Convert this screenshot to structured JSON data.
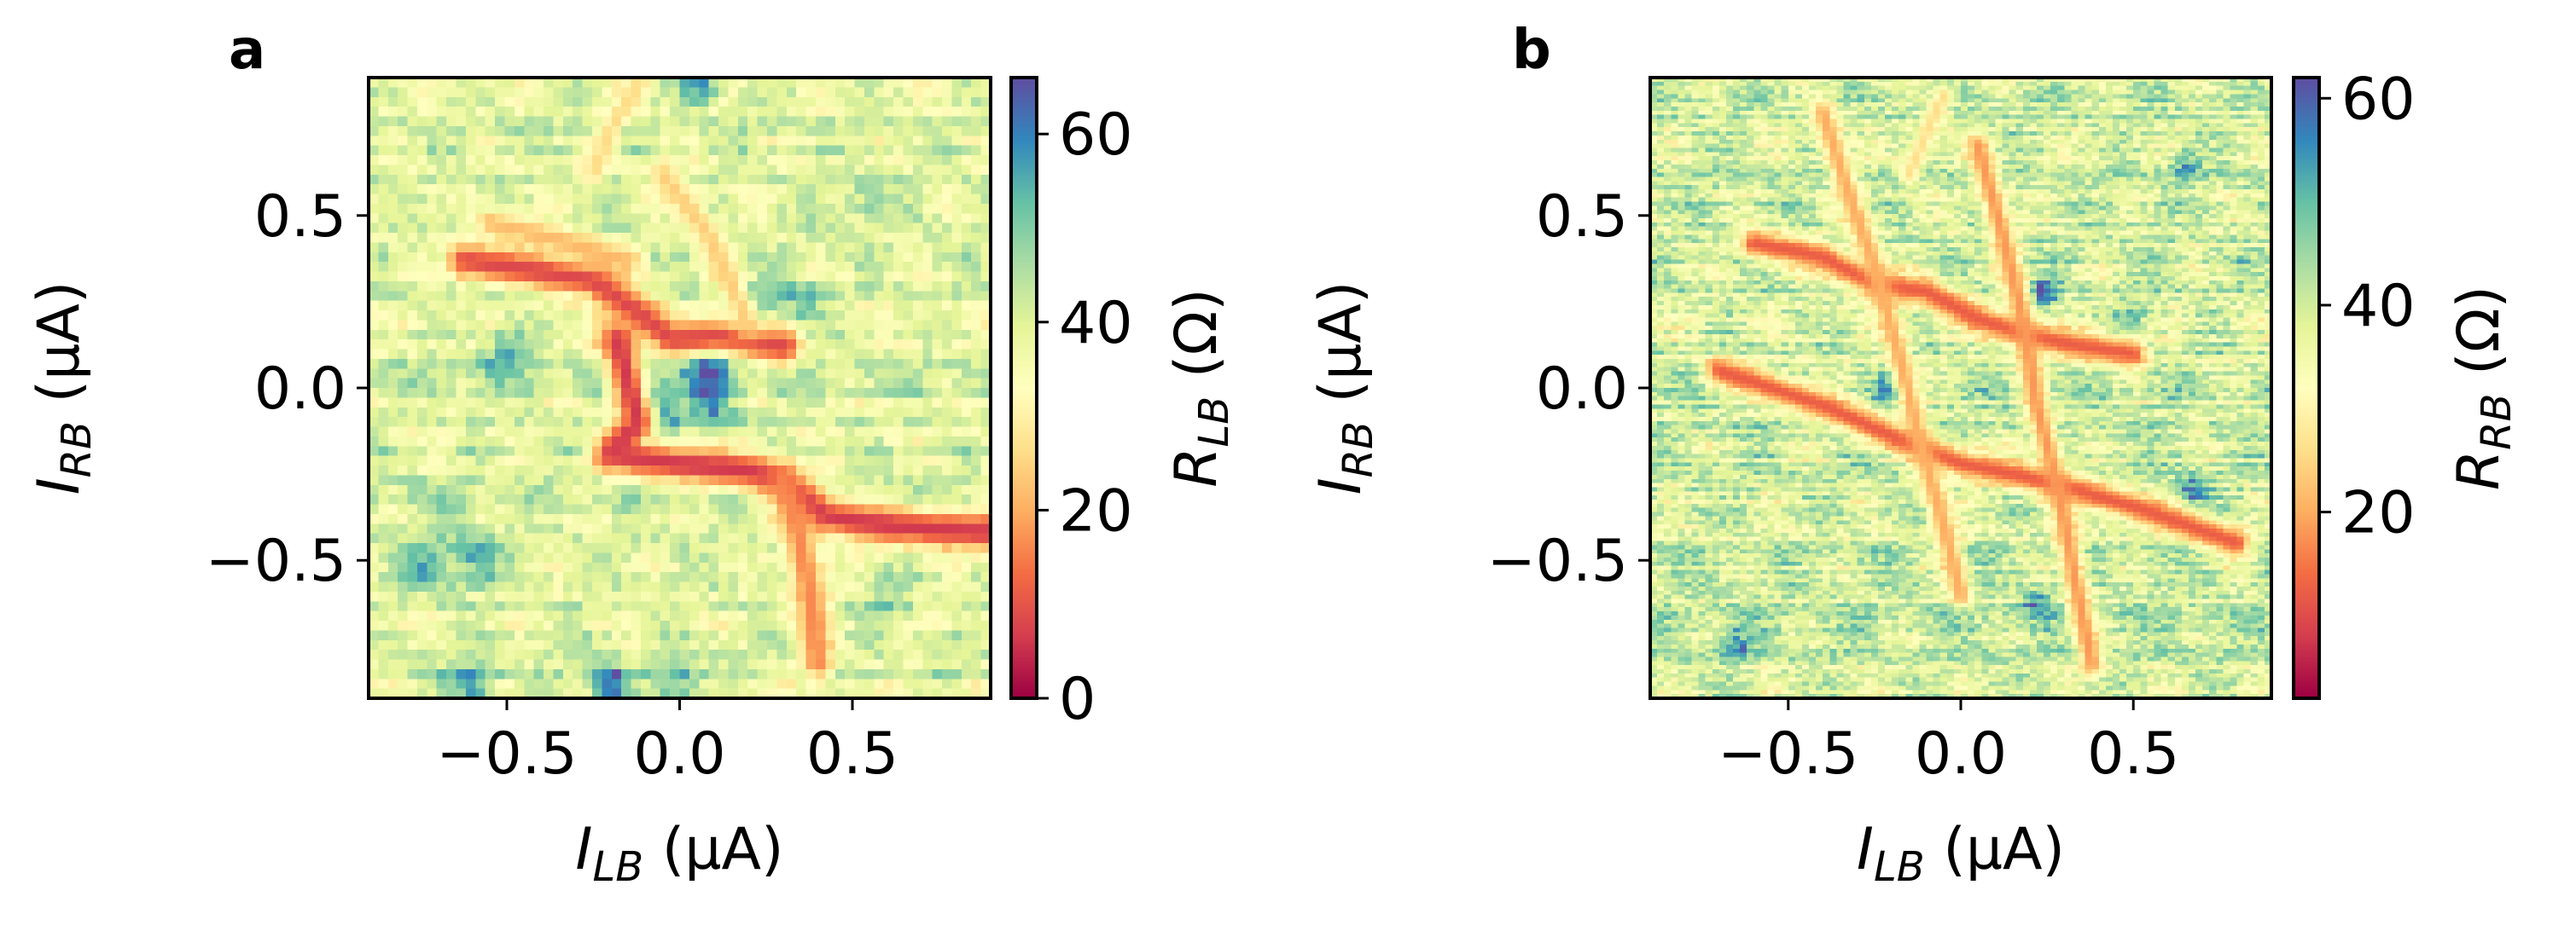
{
  "chart_data": [
    {
      "panel": "a",
      "type": "heatmap",
      "xlabel": {
        "var": "I",
        "sub": "LB",
        "unit": " (µA)"
      },
      "ylabel": {
        "var": "I",
        "sub": "RB",
        "unit": " (µA)"
      },
      "xlim": [
        -0.9,
        0.9
      ],
      "ylim": [
        -0.9,
        0.9
      ],
      "xticks": [
        {
          "value": -0.5,
          "label": "−0.5"
        },
        {
          "value": 0.0,
          "label": "0.0"
        },
        {
          "value": 0.5,
          "label": "0.5"
        }
      ],
      "yticks": [
        {
          "value": 0.5,
          "label": "0.5"
        },
        {
          "value": 0.0,
          "label": "0.0"
        },
        {
          "value": -0.5,
          "label": "−0.5"
        }
      ],
      "colorbar": {
        "label": {
          "var": "R",
          "sub": "LB",
          "unit": " (Ω)"
        },
        "range": [
          0,
          66
        ],
        "ticks": [
          {
            "value": 0,
            "label": "0"
          },
          {
            "value": 20,
            "label": "20"
          },
          {
            "value": 40,
            "label": "40"
          },
          {
            "value": 60,
            "label": "60"
          }
        ]
      },
      "colormap": "Spectral",
      "background_value": 40,
      "grid_resolution": [
        64,
        64
      ],
      "low_resistance_lines": [
        {
          "points": [
            [
              -0.55,
              0.48
            ],
            [
              -0.35,
              0.43
            ],
            [
              -0.15,
              0.37
            ]
          ],
          "value": 22,
          "width": 0.03
        },
        {
          "points": [
            [
              -0.62,
              0.37
            ],
            [
              -0.42,
              0.34
            ],
            [
              -0.25,
              0.31
            ],
            [
              -0.12,
              0.22
            ],
            [
              -0.02,
              0.14
            ],
            [
              0.12,
              0.15
            ],
            [
              0.3,
              0.12
            ]
          ],
          "value": 8,
          "width": 0.038
        },
        {
          "points": [
            [
              -0.18,
              0.14
            ],
            [
              -0.12,
              -0.1
            ],
            [
              -0.2,
              -0.19
            ],
            [
              0.0,
              -0.22
            ],
            [
              0.2,
              -0.24
            ],
            [
              0.3,
              -0.27
            ],
            [
              0.42,
              -0.37
            ],
            [
              0.6,
              -0.4
            ],
            [
              0.9,
              -0.42
            ]
          ],
          "value": 6,
          "width": 0.04
        },
        {
          "points": [
            [
              0.3,
              -0.28
            ],
            [
              0.35,
              -0.45
            ],
            [
              0.38,
              -0.62
            ],
            [
              0.4,
              -0.8
            ]
          ],
          "value": 16,
          "width": 0.035
        },
        {
          "points": [
            [
              -0.05,
              0.62
            ],
            [
              0.08,
              0.45
            ],
            [
              0.15,
              0.3
            ],
            [
              0.2,
              0.18
            ]
          ],
          "value": 24,
          "width": 0.03
        },
        {
          "points": [
            [
              -0.25,
              0.62
            ],
            [
              -0.2,
              0.75
            ],
            [
              -0.12,
              0.88
            ]
          ],
          "value": 26,
          "width": 0.025
        }
      ],
      "high_resistance_spots": [
        {
          "x": 0.08,
          "y": 0.07,
          "value": 64,
          "r": 0.055
        },
        {
          "x": -0.07,
          "y": -0.07,
          "value": 62,
          "r": 0.055
        },
        {
          "x": -0.12,
          "y": 0.02,
          "value": 57,
          "r": 0.05
        },
        {
          "x": 0.22,
          "y": 0.24,
          "value": 55,
          "r": 0.05
        },
        {
          "x": 0.36,
          "y": 0.24,
          "value": 54,
          "r": 0.045
        },
        {
          "x": 0.1,
          "y": -0.07,
          "value": 56,
          "r": 0.045
        },
        {
          "x": -0.5,
          "y": 0.1,
          "value": 54,
          "r": 0.05
        },
        {
          "x": -0.6,
          "y": -0.5,
          "value": 54,
          "r": 0.06
        },
        {
          "x": -0.75,
          "y": -0.52,
          "value": 52,
          "r": 0.06
        },
        {
          "x": -0.2,
          "y": -0.86,
          "value": 66,
          "r": 0.04
        },
        {
          "x": -0.6,
          "y": -0.87,
          "value": 58,
          "r": 0.05
        },
        {
          "x": 0.0,
          "y": -0.87,
          "value": 56,
          "r": 0.05
        },
        {
          "x": 0.06,
          "y": 0.88,
          "value": 60,
          "r": 0.04
        },
        {
          "x": 0.55,
          "y": 0.55,
          "value": 50,
          "r": 0.05
        },
        {
          "x": 0.6,
          "y": -0.62,
          "value": 50,
          "r": 0.05
        }
      ],
      "noise_amplitude": 10,
      "seed": 11
    },
    {
      "panel": "b",
      "type": "heatmap",
      "xlabel": {
        "var": "I",
        "sub": "LB",
        "unit": " (µA)"
      },
      "ylabel": {
        "var": "I",
        "sub": "RB",
        "unit": " (µA)"
      },
      "xlim": [
        -0.9,
        0.9
      ],
      "ylim": [
        -0.9,
        0.9
      ],
      "xticks": [
        {
          "value": -0.5,
          "label": "−0.5"
        },
        {
          "value": 0.0,
          "label": "0.0"
        },
        {
          "value": 0.5,
          "label": "0.5"
        }
      ],
      "yticks": [
        {
          "value": 0.5,
          "label": "0.5"
        },
        {
          "value": 0.0,
          "label": "0.0"
        },
        {
          "value": -0.5,
          "label": "−0.5"
        }
      ],
      "colorbar": {
        "label": {
          "var": "R",
          "sub": "RB",
          "unit": " (Ω)"
        },
        "range": [
          2,
          62
        ],
        "ticks": [
          {
            "value": 20,
            "label": "20"
          },
          {
            "value": 40,
            "label": "40"
          },
          {
            "value": 60,
            "label": "60"
          }
        ]
      },
      "colormap": "Spectral",
      "background_value": 40,
      "grid_resolution": [
        90,
        150
      ],
      "low_resistance_lines": [
        {
          "points": [
            [
              -0.6,
              0.42
            ],
            [
              -0.4,
              0.38
            ],
            [
              -0.25,
              0.3
            ],
            [
              -0.1,
              0.28
            ],
            [
              0.05,
              0.2
            ],
            [
              0.2,
              0.15
            ],
            [
              0.35,
              0.12
            ],
            [
              0.5,
              0.1
            ]
          ],
          "value": 12,
          "width": 0.03
        },
        {
          "points": [
            [
              -0.7,
              0.05
            ],
            [
              -0.4,
              -0.05
            ],
            [
              -0.2,
              -0.14
            ],
            [
              0.0,
              -0.22
            ],
            [
              0.2,
              -0.26
            ],
            [
              0.35,
              -0.3
            ],
            [
              0.55,
              -0.36
            ],
            [
              0.8,
              -0.45
            ]
          ],
          "value": 12,
          "width": 0.03
        },
        {
          "points": [
            [
              -0.4,
              0.8
            ],
            [
              -0.32,
              0.55
            ],
            [
              -0.25,
              0.35
            ],
            [
              -0.18,
              0.1
            ],
            [
              -0.12,
              -0.15
            ],
            [
              -0.05,
              -0.4
            ],
            [
              0.0,
              -0.6
            ]
          ],
          "value": 20,
          "width": 0.025
        },
        {
          "points": [
            [
              0.05,
              0.7
            ],
            [
              0.12,
              0.45
            ],
            [
              0.18,
              0.2
            ],
            [
              0.22,
              -0.05
            ],
            [
              0.28,
              -0.28
            ],
            [
              0.33,
              -0.55
            ],
            [
              0.38,
              -0.8
            ]
          ],
          "value": 18,
          "width": 0.025
        },
        {
          "points": [
            [
              -0.05,
              0.85
            ],
            [
              -0.15,
              0.62
            ]
          ],
          "value": 26,
          "width": 0.02
        }
      ],
      "high_resistance_spots": [
        {
          "x": 0.24,
          "y": 0.27,
          "value": 62,
          "r": 0.03
        },
        {
          "x": 0.67,
          "y": -0.3,
          "value": 58,
          "r": 0.03
        },
        {
          "x": 0.22,
          "y": -0.62,
          "value": 55,
          "r": 0.03
        },
        {
          "x": -0.65,
          "y": -0.75,
          "value": 55,
          "r": 0.03
        },
        {
          "x": 0.65,
          "y": 0.65,
          "value": 54,
          "r": 0.03
        },
        {
          "x": -0.2,
          "y": 0.0,
          "value": 52,
          "r": 0.035
        },
        {
          "x": 0.5,
          "y": 0.2,
          "value": 50,
          "r": 0.035
        }
      ],
      "noise_amplitude": 12,
      "seed": 23
    }
  ]
}
